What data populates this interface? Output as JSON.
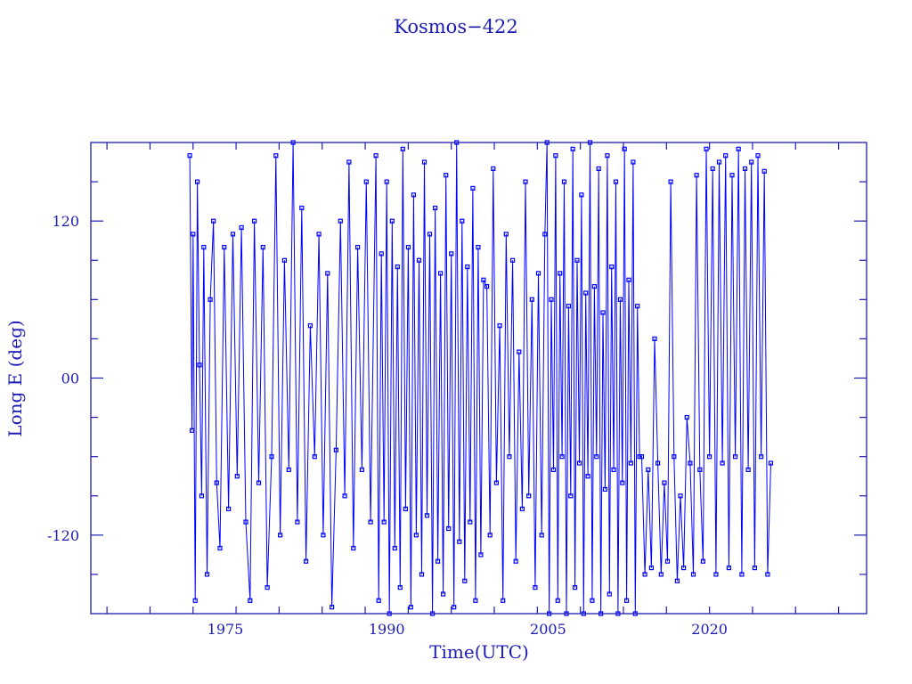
{
  "chart_data": {
    "type": "line",
    "title": "Kosmos−422",
    "xlabel": "Time(UTC)",
    "ylabel": "Long E (deg)",
    "xlim": [
      1962.5,
      2034.6
    ],
    "ylim": [
      -180,
      180
    ],
    "x_tick_labels": [
      {
        "value": 1975,
        "label": "1975"
      },
      {
        "value": 1990,
        "label": "1990"
      },
      {
        "value": 2005,
        "label": "2005"
      },
      {
        "value": 2020,
        "label": "2020"
      }
    ],
    "y_tick_labels": [
      {
        "value": 120,
        "label": "120"
      },
      {
        "value": 0,
        "label": "00"
      },
      {
        "value": -120,
        "label": "-120"
      }
    ],
    "grid": false,
    "markers": "hollow-square",
    "colors": {
      "series": "#0000ff",
      "axes": "#1c1cb4",
      "text": "#1c1cb4"
    },
    "points": [
      [
        1971.7,
        170
      ],
      [
        1971.9,
        -40
      ],
      [
        1972.0,
        110
      ],
      [
        1972.2,
        -170
      ],
      [
        1972.4,
        150
      ],
      [
        1972.6,
        10
      ],
      [
        1972.8,
        -90
      ],
      [
        1973.0,
        100
      ],
      [
        1973.3,
        -150
      ],
      [
        1973.6,
        60
      ],
      [
        1973.9,
        120
      ],
      [
        1974.2,
        -80
      ],
      [
        1974.5,
        -130
      ],
      [
        1974.9,
        100
      ],
      [
        1975.3,
        -100
      ],
      [
        1975.7,
        110
      ],
      [
        1976.1,
        -75
      ],
      [
        1976.5,
        115
      ],
      [
        1976.9,
        -110
      ],
      [
        1977.3,
        -170
      ],
      [
        1977.7,
        120
      ],
      [
        1978.1,
        -80
      ],
      [
        1978.5,
        100
      ],
      [
        1978.9,
        -160
      ],
      [
        1979.3,
        -60
      ],
      [
        1979.7,
        170
      ],
      [
        1980.1,
        -120
      ],
      [
        1980.5,
        90
      ],
      [
        1980.9,
        -70
      ],
      [
        1981.3,
        180
      ],
      [
        1981.7,
        -110
      ],
      [
        1982.1,
        130
      ],
      [
        1982.5,
        -140
      ],
      [
        1982.9,
        40
      ],
      [
        1983.3,
        -60
      ],
      [
        1983.7,
        110
      ],
      [
        1984.1,
        -120
      ],
      [
        1984.5,
        80
      ],
      [
        1984.9,
        -175
      ],
      [
        1985.3,
        -55
      ],
      [
        1985.7,
        120
      ],
      [
        1986.1,
        -90
      ],
      [
        1986.5,
        165
      ],
      [
        1986.9,
        -130
      ],
      [
        1987.3,
        100
      ],
      [
        1987.7,
        -70
      ],
      [
        1988.1,
        150
      ],
      [
        1988.5,
        -110
      ],
      [
        1989.0,
        170
      ],
      [
        1989.25,
        -170
      ],
      [
        1989.5,
        95
      ],
      [
        1989.75,
        -110
      ],
      [
        1990.0,
        150
      ],
      [
        1990.25,
        -180
      ],
      [
        1990.5,
        120
      ],
      [
        1990.75,
        -130
      ],
      [
        1991.0,
        85
      ],
      [
        1991.25,
        -160
      ],
      [
        1991.5,
        175
      ],
      [
        1991.75,
        -100
      ],
      [
        1992.0,
        100
      ],
      [
        1992.25,
        -175
      ],
      [
        1992.5,
        140
      ],
      [
        1992.75,
        -120
      ],
      [
        1993.0,
        90
      ],
      [
        1993.25,
        -150
      ],
      [
        1993.5,
        165
      ],
      [
        1993.75,
        -105
      ],
      [
        1994.0,
        110
      ],
      [
        1994.25,
        -180
      ],
      [
        1994.5,
        130
      ],
      [
        1994.75,
        -140
      ],
      [
        1995.0,
        80
      ],
      [
        1995.25,
        -165
      ],
      [
        1995.5,
        155
      ],
      [
        1995.75,
        -115
      ],
      [
        1996.0,
        95
      ],
      [
        1996.25,
        -175
      ],
      [
        1996.5,
        180
      ],
      [
        1996.75,
        -125
      ],
      [
        1997.0,
        120
      ],
      [
        1997.25,
        -155
      ],
      [
        1997.5,
        85
      ],
      [
        1997.75,
        -110
      ],
      [
        1998.0,
        145
      ],
      [
        1998.25,
        -170
      ],
      [
        1998.5,
        100
      ],
      [
        1998.75,
        -135
      ],
      [
        1999.0,
        75
      ],
      [
        1999.3,
        70
      ],
      [
        1999.6,
        -120
      ],
      [
        1999.9,
        160
      ],
      [
        2000.2,
        -80
      ],
      [
        2000.5,
        40
      ],
      [
        2000.8,
        -170
      ],
      [
        2001.1,
        110
      ],
      [
        2001.4,
        -60
      ],
      [
        2001.7,
        90
      ],
      [
        2002.0,
        -140
      ],
      [
        2002.3,
        20
      ],
      [
        2002.6,
        -100
      ],
      [
        2002.9,
        150
      ],
      [
        2003.2,
        -90
      ],
      [
        2003.5,
        60
      ],
      [
        2003.8,
        -160
      ],
      [
        2004.1,
        80
      ],
      [
        2004.4,
        -120
      ],
      [
        2004.7,
        110
      ],
      [
        2004.9,
        180
      ],
      [
        2005.1,
        -180
      ],
      [
        2005.3,
        60
      ],
      [
        2005.5,
        -70
      ],
      [
        2005.7,
        170
      ],
      [
        2005.9,
        -170
      ],
      [
        2006.1,
        80
      ],
      [
        2006.3,
        -60
      ],
      [
        2006.5,
        150
      ],
      [
        2006.7,
        -180
      ],
      [
        2006.9,
        55
      ],
      [
        2007.1,
        -90
      ],
      [
        2007.3,
        175
      ],
      [
        2007.5,
        -160
      ],
      [
        2007.7,
        90
      ],
      [
        2007.9,
        -65
      ],
      [
        2008.1,
        140
      ],
      [
        2008.3,
        -180
      ],
      [
        2008.5,
        65
      ],
      [
        2008.7,
        -75
      ],
      [
        2008.9,
        180
      ],
      [
        2009.1,
        -170
      ],
      [
        2009.3,
        70
      ],
      [
        2009.5,
        -60
      ],
      [
        2009.7,
        160
      ],
      [
        2009.9,
        -180
      ],
      [
        2010.1,
        50
      ],
      [
        2010.3,
        -85
      ],
      [
        2010.5,
        170
      ],
      [
        2010.7,
        -165
      ],
      [
        2010.9,
        85
      ],
      [
        2011.1,
        -70
      ],
      [
        2011.3,
        150
      ],
      [
        2011.5,
        -180
      ],
      [
        2011.7,
        60
      ],
      [
        2011.9,
        -80
      ],
      [
        2012.1,
        175
      ],
      [
        2012.3,
        -170
      ],
      [
        2012.5,
        75
      ],
      [
        2012.7,
        -65
      ],
      [
        2012.9,
        165
      ],
      [
        2013.1,
        -180
      ],
      [
        2013.3,
        55
      ],
      [
        2013.5,
        -60
      ],
      [
        2013.7,
        -60
      ],
      [
        2014.0,
        -150
      ],
      [
        2014.3,
        -70
      ],
      [
        2014.6,
        -145
      ],
      [
        2014.9,
        30
      ],
      [
        2015.2,
        -65
      ],
      [
        2015.5,
        -150
      ],
      [
        2015.8,
        -80
      ],
      [
        2016.1,
        -140
      ],
      [
        2016.4,
        150
      ],
      [
        2016.7,
        -60
      ],
      [
        2017.0,
        -155
      ],
      [
        2017.3,
        -90
      ],
      [
        2017.6,
        -145
      ],
      [
        2017.9,
        -30
      ],
      [
        2018.2,
        -65
      ],
      [
        2018.5,
        -150
      ],
      [
        2018.8,
        155
      ],
      [
        2019.1,
        -70
      ],
      [
        2019.4,
        -140
      ],
      [
        2019.7,
        175
      ],
      [
        2020.0,
        -60
      ],
      [
        2020.3,
        160
      ],
      [
        2020.6,
        -150
      ],
      [
        2020.9,
        165
      ],
      [
        2021.2,
        -65
      ],
      [
        2021.5,
        170
      ],
      [
        2021.8,
        -145
      ],
      [
        2022.1,
        155
      ],
      [
        2022.4,
        -60
      ],
      [
        2022.7,
        175
      ],
      [
        2023.0,
        -150
      ],
      [
        2023.3,
        160
      ],
      [
        2023.6,
        -70
      ],
      [
        2023.9,
        165
      ],
      [
        2024.2,
        -145
      ],
      [
        2024.5,
        170
      ],
      [
        2024.8,
        -60
      ],
      [
        2025.1,
        158
      ],
      [
        2025.4,
        -150
      ],
      [
        2025.7,
        -65
      ]
    ]
  }
}
